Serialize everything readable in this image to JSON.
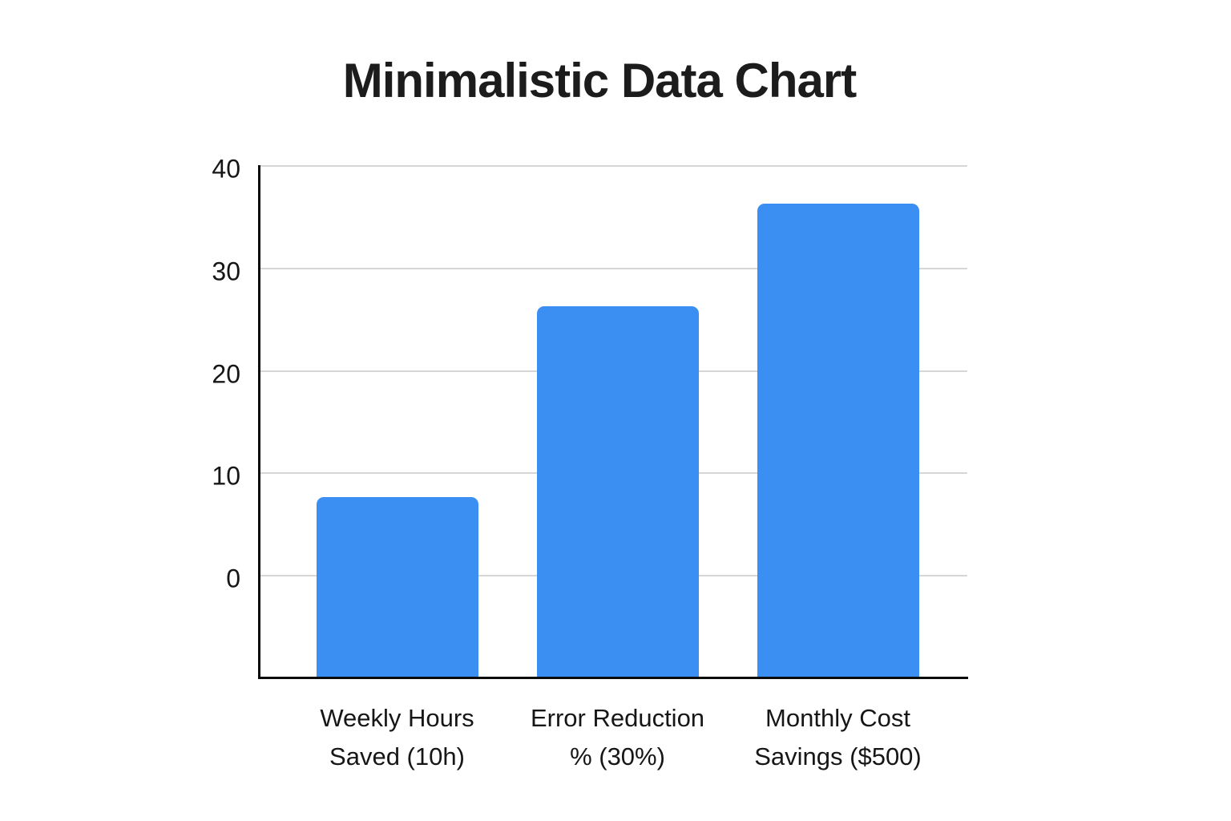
{
  "chart_data": {
    "type": "bar",
    "title": "Minimalistic Data Chart",
    "categories": [
      "Weekly Hours\nSaved (10h)",
      "Error Reduction\n% (30%)",
      "Monthly Cost\nSavings ($500)"
    ],
    "values": [
      7.7,
      26.3,
      36.3
    ],
    "underlying_metrics": [
      "10h",
      "30%",
      "$500"
    ],
    "yticks": [
      40,
      30,
      20,
      10,
      0
    ],
    "ylim": [
      -10.1,
      40
    ],
    "xlabel": "",
    "ylabel": "",
    "grid": "horizontal",
    "legend": "none",
    "bar_color": "#3b8ff3",
    "axis_color": "#0b0b0b",
    "gridline_color": "#d6d6d6",
    "text_color": "#161616",
    "background_color": "#ffffff"
  }
}
